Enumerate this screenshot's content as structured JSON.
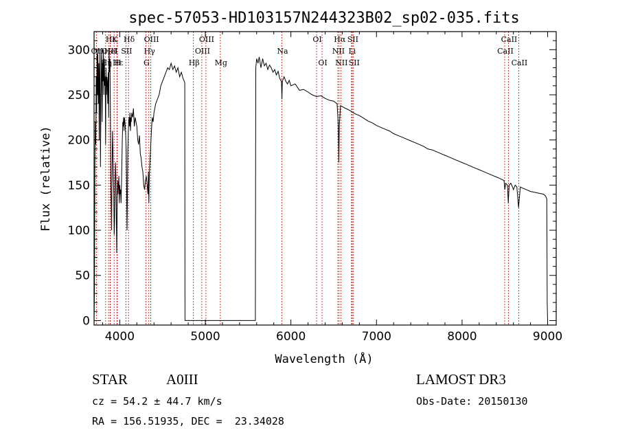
{
  "chart_data": {
    "type": "line",
    "title": "spec-57053-HD103157N244323B02_sp02-035.fits",
    "xlabel": "Wavelength (Å)",
    "ylabel": "Flux (relative)",
    "xlim": [
      3700,
      9100
    ],
    "ylim": [
      -5,
      320
    ],
    "xticks": [
      4000,
      5000,
      6000,
      7000,
      8000,
      9000
    ],
    "yticks": [
      0,
      50,
      100,
      150,
      200,
      250,
      300
    ],
    "series": [
      {
        "name": "flux",
        "points": [
          [
            3700,
            0
          ],
          [
            3705,
            40
          ],
          [
            3710,
            170
          ],
          [
            3715,
            220
          ],
          [
            3720,
            195
          ],
          [
            3725,
            270
          ],
          [
            3730,
            230
          ],
          [
            3735,
            300
          ],
          [
            3740,
            250
          ],
          [
            3745,
            295
          ],
          [
            3750,
            240
          ],
          [
            3755,
            285
          ],
          [
            3760,
            200
          ],
          [
            3765,
            275
          ],
          [
            3770,
            300
          ],
          [
            3775,
            170
          ],
          [
            3780,
            240
          ],
          [
            3785,
            280
          ],
          [
            3790,
            300
          ],
          [
            3795,
            220
          ],
          [
            3800,
            285
          ],
          [
            3805,
            265
          ],
          [
            3810,
            300
          ],
          [
            3815,
            250
          ],
          [
            3820,
            290
          ],
          [
            3825,
            260
          ],
          [
            3830,
            270
          ],
          [
            3835,
            195
          ],
          [
            3840,
            280
          ],
          [
            3845,
            250
          ],
          [
            3850,
            270
          ],
          [
            3855,
            265
          ],
          [
            3860,
            240
          ],
          [
            3865,
            275
          ],
          [
            3870,
            225
          ],
          [
            3875,
            300
          ],
          [
            3880,
            275
          ],
          [
            3885,
            290
          ],
          [
            3890,
            240
          ],
          [
            3895,
            160
          ],
          [
            3900,
            130
          ],
          [
            3905,
            100
          ],
          [
            3910,
            170
          ],
          [
            3915,
            210
          ],
          [
            3920,
            190
          ],
          [
            3925,
            160
          ],
          [
            3930,
            140
          ],
          [
            3935,
            95
          ],
          [
            3940,
            110
          ],
          [
            3945,
            150
          ],
          [
            3950,
            175
          ],
          [
            3955,
            160
          ],
          [
            3960,
            120
          ],
          [
            3965,
            75
          ],
          [
            3970,
            130
          ],
          [
            3975,
            155
          ],
          [
            3980,
            140
          ],
          [
            3985,
            150
          ],
          [
            3990,
            160
          ],
          [
            3995,
            130
          ],
          [
            4000,
            150
          ],
          [
            4005,
            140
          ],
          [
            4010,
            145
          ],
          [
            4015,
            130
          ],
          [
            4020,
            150
          ],
          [
            4025,
            175
          ],
          [
            4030,
            200
          ],
          [
            4035,
            220
          ],
          [
            4040,
            215
          ],
          [
            4045,
            225
          ],
          [
            4050,
            210
          ],
          [
            4055,
            225
          ],
          [
            4060,
            220
          ],
          [
            4065,
            215
          ],
          [
            4070,
            205
          ],
          [
            4075,
            190
          ],
          [
            4080,
            150
          ],
          [
            4085,
            100
          ],
          [
            4090,
            140
          ],
          [
            4095,
            190
          ],
          [
            4100,
            210
          ],
          [
            4105,
            220
          ],
          [
            4110,
            225
          ],
          [
            4115,
            215
          ],
          [
            4120,
            230
          ],
          [
            4125,
            210
          ],
          [
            4130,
            225
          ],
          [
            4135,
            220
          ],
          [
            4140,
            230
          ],
          [
            4150,
            225
          ],
          [
            4160,
            235
          ],
          [
            4170,
            215
          ],
          [
            4180,
            225
          ],
          [
            4190,
            220
          ],
          [
            4200,
            215
          ],
          [
            4210,
            200
          ],
          [
            4220,
            195
          ],
          [
            4230,
            205
          ],
          [
            4240,
            185
          ],
          [
            4250,
            180
          ],
          [
            4260,
            170
          ],
          [
            4270,
            165
          ],
          [
            4280,
            150
          ],
          [
            4290,
            145
          ],
          [
            4300,
            155
          ],
          [
            4310,
            160
          ],
          [
            4320,
            150
          ],
          [
            4330,
            140
          ],
          [
            4335,
            165
          ],
          [
            4340,
            130
          ],
          [
            4345,
            160
          ],
          [
            4350,
            170
          ],
          [
            4360,
            190
          ],
          [
            4370,
            210
          ],
          [
            4380,
            225
          ],
          [
            4390,
            220
          ],
          [
            4400,
            230
          ],
          [
            4420,
            240
          ],
          [
            4440,
            245
          ],
          [
            4460,
            250
          ],
          [
            4480,
            260
          ],
          [
            4500,
            265
          ],
          [
            4520,
            270
          ],
          [
            4540,
            275
          ],
          [
            4560,
            280
          ],
          [
            4580,
            278
          ],
          [
            4600,
            285
          ],
          [
            4620,
            278
          ],
          [
            4640,
            282
          ],
          [
            4660,
            275
          ],
          [
            4680,
            280
          ],
          [
            4700,
            270
          ],
          [
            4720,
            275
          ],
          [
            4740,
            268
          ],
          [
            4755,
            265
          ],
          [
            4760,
            263
          ],
          [
            4761,
            150
          ],
          [
            4762,
            0
          ],
          [
            5585,
            0
          ],
          [
            5587,
            150
          ],
          [
            5590,
            280
          ],
          [
            5600,
            290
          ],
          [
            5615,
            285
          ],
          [
            5630,
            292
          ],
          [
            5650,
            280
          ],
          [
            5670,
            290
          ],
          [
            5690,
            282
          ],
          [
            5710,
            285
          ],
          [
            5730,
            278
          ],
          [
            5750,
            283
          ],
          [
            5770,
            280
          ],
          [
            5790,
            275
          ],
          [
            5810,
            278
          ],
          [
            5830,
            272
          ],
          [
            5850,
            276
          ],
          [
            5870,
            268
          ],
          [
            5890,
            265
          ],
          [
            5895,
            245
          ],
          [
            5900,
            265
          ],
          [
            5920,
            270
          ],
          [
            5940,
            265
          ],
          [
            5960,
            262
          ],
          [
            5980,
            266
          ],
          [
            6000,
            260
          ],
          [
            6050,
            262
          ],
          [
            6100,
            255
          ],
          [
            6150,
            256
          ],
          [
            6200,
            253
          ],
          [
            6250,
            250
          ],
          [
            6300,
            248
          ],
          [
            6350,
            249
          ],
          [
            6400,
            246
          ],
          [
            6450,
            244
          ],
          [
            6500,
            243
          ],
          [
            6540,
            240
          ],
          [
            6555,
            215
          ],
          [
            6560,
            175
          ],
          [
            6565,
            215
          ],
          [
            6580,
            238
          ],
          [
            6620,
            236
          ],
          [
            6660,
            234
          ],
          [
            6700,
            232
          ],
          [
            6750,
            229
          ],
          [
            6800,
            227
          ],
          [
            6850,
            224
          ],
          [
            6900,
            221
          ],
          [
            6950,
            219
          ],
          [
            7000,
            216
          ],
          [
            7050,
            214
          ],
          [
            7100,
            212
          ],
          [
            7150,
            210
          ],
          [
            7200,
            207
          ],
          [
            7250,
            205
          ],
          [
            7300,
            203
          ],
          [
            7350,
            201
          ],
          [
            7400,
            199
          ],
          [
            7450,
            197
          ],
          [
            7500,
            195
          ],
          [
            7550,
            193
          ],
          [
            7600,
            190
          ],
          [
            7650,
            189
          ],
          [
            7700,
            187
          ],
          [
            7750,
            185
          ],
          [
            7800,
            183
          ],
          [
            7850,
            181
          ],
          [
            7900,
            179
          ],
          [
            7950,
            177
          ],
          [
            8000,
            175
          ],
          [
            8050,
            173
          ],
          [
            8100,
            171
          ],
          [
            8150,
            169
          ],
          [
            8200,
            167
          ],
          [
            8250,
            165
          ],
          [
            8300,
            163
          ],
          [
            8350,
            161
          ],
          [
            8400,
            159
          ],
          [
            8450,
            157
          ],
          [
            8490,
            155
          ],
          [
            8500,
            145
          ],
          [
            8510,
            152
          ],
          [
            8530,
            150
          ],
          [
            8540,
            130
          ],
          [
            8550,
            150
          ],
          [
            8570,
            152
          ],
          [
            8590,
            148
          ],
          [
            8600,
            145
          ],
          [
            8620,
            150
          ],
          [
            8640,
            148
          ],
          [
            8660,
            125
          ],
          [
            8680,
            148
          ],
          [
            8700,
            147
          ],
          [
            8750,
            145
          ],
          [
            8800,
            143
          ],
          [
            8850,
            142
          ],
          [
            8900,
            141
          ],
          [
            8950,
            140
          ],
          [
            8975,
            138
          ],
          [
            8990,
            135
          ],
          [
            8995,
            20
          ],
          [
            9000,
            0
          ]
        ]
      }
    ],
    "spectral_lines": [
      {
        "label": "Hα",
        "wavelength": 6563,
        "row": 0
      },
      {
        "label": "OII",
        "wavelength": 3727,
        "row": 1
      },
      {
        "label": "Hδ",
        "wavelength": 4102,
        "row": 0
      },
      {
        "label": "Hγ",
        "wavelength": 4340,
        "row": 1
      },
      {
        "label": "Hβ",
        "wavelength": 4861,
        "row": 2
      },
      {
        "label": "K",
        "wavelength": 3934,
        "row": 0
      },
      {
        "label": "H",
        "wavelength": 3969,
        "row": 2
      },
      {
        "label": "G",
        "wavelength": 4305,
        "row": 2
      },
      {
        "label": "Mg",
        "wavelength": 5175,
        "row": 2
      },
      {
        "label": "Na",
        "wavelength": 5894,
        "row": 1
      },
      {
        "label": "OIII",
        "wavelength": 4363,
        "row": 0
      },
      {
        "label": "OIII",
        "wavelength": 4959,
        "row": 1
      },
      {
        "label": "OIII",
        "wavelength": 5007,
        "row": 0
      },
      {
        "label": "OI",
        "wavelength": 6300,
        "row": 0
      },
      {
        "label": "OI",
        "wavelength": 6364,
        "row": 2
      },
      {
        "label": "NII",
        "wavelength": 6548,
        "row": 1
      },
      {
        "label": "NII",
        "wavelength": 6583,
        "row": 2
      },
      {
        "label": "SII",
        "wavelength": 6716,
        "row": 0
      },
      {
        "label": "SII",
        "wavelength": 6731,
        "row": 2
      },
      {
        "label": "Li",
        "wavelength": 6708,
        "row": 1
      },
      {
        "label": "CaII",
        "wavelength": 8498,
        "row": 1
      },
      {
        "label": "CaII",
        "wavelength": 8542,
        "row": 0
      },
      {
        "label": "CaII",
        "wavelength": 8662,
        "row": 2
      },
      {
        "label": "Hε",
        "wavelength": 3889,
        "row": 0
      },
      {
        "label": "HeI",
        "wavelength": 3889,
        "row": 1
      },
      {
        "label": "SII",
        "wavelength": 4072,
        "row": 1
      },
      {
        "label": "OIII",
        "wavelength": 3869,
        "row": 1
      },
      {
        "label": "Hε",
        "wavelength": 3970,
        "row": 2
      },
      {
        "label": "Hη",
        "wavelength": 3835,
        "row": 2
      }
    ],
    "line_color": "#000000",
    "marker_color": "#cc0000"
  },
  "info": {
    "object_class": "STAR",
    "subclass": "A0III",
    "survey": "LAMOST DR3",
    "redshift_text": "cz = 54.2 ± 44.7 km/s",
    "obs_date_text": "Obs-Date: 20150130",
    "coords_text": "RA = 156.51935, DEC =  23.34028"
  }
}
